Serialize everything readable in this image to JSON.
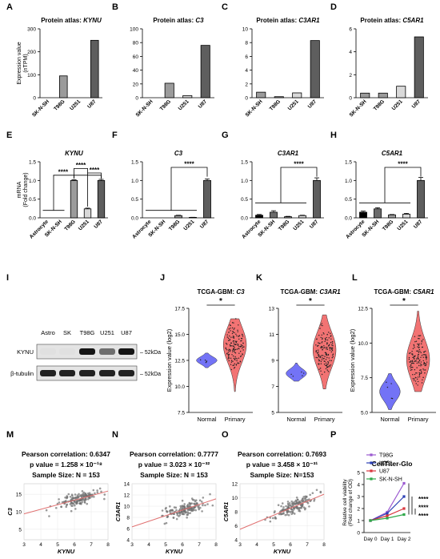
{
  "panel_letters": [
    "A",
    "B",
    "C",
    "D",
    "E",
    "F",
    "G",
    "H",
    "I",
    "J",
    "K",
    "L",
    "M",
    "N",
    "O",
    "P"
  ],
  "chart_data": [
    {
      "panel": "A",
      "type": "bar",
      "title": "Protein atlas: KYNU",
      "ylabel": "Expression value (nTPM)",
      "categories": [
        "SK-N-SH",
        "T98G",
        "U251",
        "U87"
      ],
      "values": [
        0,
        95,
        0,
        250
      ],
      "ylim": [
        0,
        300
      ],
      "yticks": [
        0,
        100,
        200,
        300
      ],
      "fills": [
        "#ffffff",
        "#9b9b9b",
        "#d9d9d9",
        "#5e5e5e"
      ]
    },
    {
      "panel": "B",
      "type": "bar",
      "title": "Protein atlas: C3",
      "categories": [
        "SK-N-SH",
        "T98G",
        "U251",
        "U87"
      ],
      "values": [
        0,
        21,
        3,
        76
      ],
      "ylim": [
        0,
        100
      ],
      "yticks": [
        0,
        20,
        40,
        60,
        80,
        100
      ],
      "fills": [
        "#ffffff",
        "#9b9b9b",
        "#d9d9d9",
        "#5e5e5e"
      ]
    },
    {
      "panel": "C",
      "type": "bar",
      "title": "Protein atlas: C3AR1",
      "categories": [
        "SK-N-SH",
        "T98G",
        "U251",
        "U87"
      ],
      "values": [
        0.8,
        0.15,
        0.7,
        8.3
      ],
      "ylim": [
        0,
        10
      ],
      "yticks": [
        0,
        2,
        4,
        6,
        8,
        10
      ],
      "fills": [
        "#9b9b9b",
        "#9b9b9b",
        "#d9d9d9",
        "#5e5e5e"
      ]
    },
    {
      "panel": "D",
      "type": "bar",
      "title": "Protein atlas: C5AR1",
      "categories": [
        "SK-N-SH",
        "T98G",
        "U251",
        "U87"
      ],
      "values": [
        0.4,
        0.4,
        1.0,
        5.3
      ],
      "ylim": [
        0,
        6
      ],
      "yticks": [
        0,
        2,
        4,
        6
      ],
      "fills": [
        "#9b9b9b",
        "#9b9b9b",
        "#d9d9d9",
        "#5e5e5e"
      ]
    },
    {
      "panel": "E",
      "type": "bar",
      "title": "KYNU",
      "ylabel": "mRNA (Fold change)",
      "categories": [
        "Astrocyte",
        "SK-N-SH",
        "T98G",
        "U251",
        "U87"
      ],
      "values": [
        0,
        0,
        1.0,
        0.24,
        1.0
      ],
      "errors": [
        0,
        0,
        0.02,
        0.02,
        0.03
      ],
      "ylim": [
        0,
        1.5
      ],
      "yticks": [
        "0.0",
        "0.5",
        "1.0",
        "1.5"
      ],
      "fills": [
        "#000000",
        "#6b6b6b",
        "#9b9b9b",
        "#d9d9d9",
        "#5e5e5e"
      ],
      "annotations": [
        "****",
        "****",
        "****"
      ]
    },
    {
      "panel": "F",
      "type": "bar",
      "title": "C3",
      "categories": [
        "Astrocyte",
        "SK-N-SH",
        "T98G",
        "U251",
        "U87"
      ],
      "values": [
        0,
        0,
        0.06,
        0.01,
        1.0
      ],
      "errors": [
        0,
        0,
        0.01,
        0.005,
        0.04
      ],
      "ylim": [
        0,
        1.5
      ],
      "yticks": [
        "0.0",
        "0.5",
        "1.0",
        "1.5"
      ],
      "fills": [
        "#000000",
        "#6b6b6b",
        "#9b9b9b",
        "#d9d9d9",
        "#5e5e5e"
      ],
      "annotations": [
        "****"
      ]
    },
    {
      "panel": "G",
      "type": "bar",
      "title": "C3AR1",
      "categories": [
        "Astrocyte",
        "SK-N-SH",
        "T98G",
        "U251",
        "U87"
      ],
      "values": [
        0.07,
        0.15,
        0.03,
        0.06,
        1.0
      ],
      "errors": [
        0.02,
        0.04,
        0.01,
        0.01,
        0.07
      ],
      "ylim": [
        0,
        1.5
      ],
      "yticks": [
        "0.0",
        "0.5",
        "1.0",
        "1.5"
      ],
      "fills": [
        "#000000",
        "#6b6b6b",
        "#9b9b9b",
        "#d9d9d9",
        "#5e5e5e"
      ],
      "annotations": [
        "****"
      ]
    },
    {
      "panel": "H",
      "type": "bar",
      "title": "C5AR1",
      "categories": [
        "Astrocyte",
        "SK-N-SH",
        "T98G",
        "U251",
        "U87"
      ],
      "values": [
        0.15,
        0.24,
        0.08,
        0.1,
        1.0
      ],
      "errors": [
        0.03,
        0.03,
        0.01,
        0.02,
        0.08
      ],
      "ylim": [
        0,
        1.5
      ],
      "yticks": [
        "0.0",
        "0.5",
        "1.0",
        "1.5"
      ],
      "fills": [
        "#000000",
        "#6b6b6b",
        "#9b9b9b",
        "#d9d9d9",
        "#5e5e5e"
      ],
      "annotations": [
        "****"
      ]
    },
    {
      "panel": "J",
      "type": "violin",
      "title": "TCGA-GBM: C3",
      "ylabel": "Expression value (log2)",
      "categories": [
        "Normal",
        "Primary"
      ],
      "ylim": [
        7.5,
        17.5
      ],
      "yticks": [
        "7.5",
        "10.0",
        "12.5",
        "15.0",
        "17.5"
      ],
      "medians": [
        12.5,
        14.0
      ],
      "ranges": [
        [
          11.8,
          13.2
        ],
        [
          9.5,
          16.5
        ]
      ],
      "colors": [
        "#5b5bf5",
        "#f05a5a"
      ],
      "annotations": [
        "*"
      ]
    },
    {
      "panel": "K",
      "type": "violin",
      "title": "TCGA-GBM: C3AR1",
      "categories": [
        "Normal",
        "Primary"
      ],
      "ylim": [
        5,
        13
      ],
      "yticks": [
        5,
        7,
        9,
        11,
        13
      ],
      "medians": [
        8.0,
        9.8
      ],
      "ranges": [
        [
          7.4,
          8.8
        ],
        [
          6.8,
          12.5
        ]
      ],
      "colors": [
        "#5b5bf5",
        "#f05a5a"
      ],
      "annotations": [
        "*"
      ]
    },
    {
      "panel": "L",
      "type": "violin",
      "title": "TCGA-GBM: C5AR1",
      "ylabel": "Expression value (log2)",
      "categories": [
        "Normal",
        "Primary"
      ],
      "ylim": [
        5,
        12.5
      ],
      "yticks": [
        "5.0",
        "7.5",
        "10.0",
        "12.5"
      ],
      "medians": [
        6.5,
        8.8
      ],
      "ranges": [
        [
          5.2,
          7.8
        ],
        [
          6.5,
          12.3
        ]
      ],
      "colors": [
        "#5b5bf5",
        "#f05a5a"
      ],
      "annotations": [
        "*"
      ]
    },
    {
      "panel": "M",
      "type": "scatter",
      "title_lines": [
        "Pearson correlation: 0.6347",
        "p value = 1.258 × 10⁻¹⁸",
        "Sample Size: N = 153"
      ],
      "xlabel": "KYNU",
      "ylabel": "C3",
      "xlim": [
        3,
        8
      ],
      "ylim": [
        2,
        18
      ],
      "xticks": [
        3,
        4,
        5,
        6,
        7,
        8
      ],
      "yticks": [
        5,
        10,
        15
      ],
      "fit": {
        "slope": 1.3,
        "intercept": 5.5
      },
      "n": 153
    },
    {
      "panel": "N",
      "type": "scatter",
      "title_lines": [
        "Pearson correlation: 0.7777",
        "p value = 3.023 × 10⁻³²",
        "Sample Size: N = 153"
      ],
      "xlabel": "KYNU",
      "ylabel": "C3AR1",
      "xlim": [
        3,
        8
      ],
      "ylim": [
        4,
        14
      ],
      "xticks": [
        3,
        4,
        5,
        6,
        7,
        8
      ],
      "yticks": [
        4,
        6,
        8,
        10,
        12,
        14
      ],
      "fit": {
        "slope": 1.0,
        "intercept": 3.3
      },
      "n": 153
    },
    {
      "panel": "O",
      "type": "scatter",
      "title_lines": [
        "Pearson correlation: 0.7693",
        "p value = 3.458 × 10⁻³¹",
        "Sample Size: N=153"
      ],
      "xlabel": "KYNU",
      "ylabel": "C5AR1",
      "xlim": [
        3,
        8
      ],
      "ylim": [
        4,
        12
      ],
      "xticks": [
        3,
        4,
        5,
        6,
        7,
        8
      ],
      "yticks": [
        4,
        6,
        8,
        10,
        12
      ],
      "fit": {
        "slope": 1.0,
        "intercept": 2.5
      },
      "n": 153
    },
    {
      "panel": "P",
      "type": "line",
      "title": "CellTiter-Glo",
      "ylabel": "Relative cell viability (Fold change of OD)",
      "categories": [
        "Day 0",
        "Day 1",
        "Day 2"
      ],
      "ylim": [
        0,
        5
      ],
      "yticks": [
        0,
        1,
        2,
        3,
        4,
        5
      ],
      "legend": "right",
      "series": [
        {
          "name": "T98G",
          "values": [
            1.0,
            1.7,
            4.1
          ],
          "color": "#9b59d0"
        },
        {
          "name": "U251",
          "values": [
            1.0,
            1.6,
            3.0
          ],
          "color": "#2b3fb5"
        },
        {
          "name": "U87",
          "values": [
            1.0,
            1.4,
            2.0
          ],
          "color": "#d9363e"
        },
        {
          "name": "SK-N-SH",
          "values": [
            1.0,
            1.2,
            1.5
          ],
          "color": "#2fa84a"
        }
      ],
      "annotations": [
        "****",
        "****",
        "****"
      ]
    }
  ],
  "western_blot": {
    "panel": "I",
    "lanes": [
      "Astro",
      "SK",
      "T98G",
      "U251",
      "U87"
    ],
    "rows": [
      {
        "label": "KYNU",
        "marker": "– 52kDa",
        "intensity": [
          0.05,
          0.05,
          0.95,
          0.55,
          0.95
        ]
      },
      {
        "label": "β-tubulin",
        "marker": "– 52kDa",
        "intensity": [
          0.9,
          0.9,
          0.9,
          0.9,
          0.9
        ]
      }
    ]
  }
}
